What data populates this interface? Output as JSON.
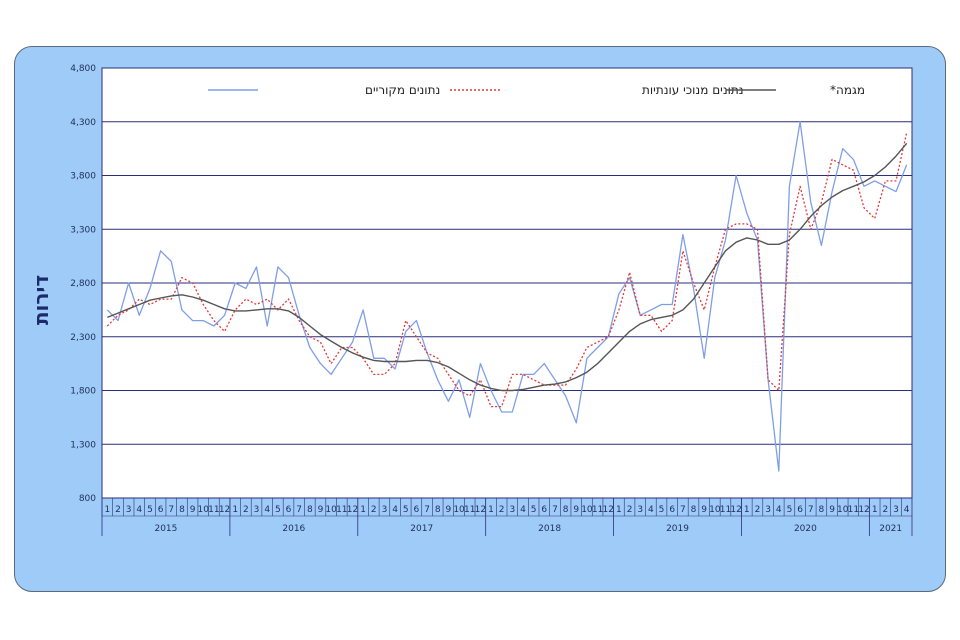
{
  "chart_data": {
    "type": "line",
    "ylabel": "דירות",
    "ylim": [
      800,
      4800
    ],
    "yticks": [
      "800",
      "1,300",
      "1,800",
      "2,300",
      "2,800",
      "3,300",
      "3,800",
      "4,300",
      "4,800"
    ],
    "ytick_values": [
      800,
      1300,
      1800,
      2300,
      2800,
      3300,
      3800,
      4300,
      4800
    ],
    "month_labels": [
      "1",
      "2",
      "3",
      "4",
      "5",
      "6",
      "7",
      "8",
      "9",
      "10",
      "11",
      "12"
    ],
    "years": [
      {
        "label": "2015",
        "months": 12
      },
      {
        "label": "2016",
        "months": 12
      },
      {
        "label": "2017",
        "months": 12
      },
      {
        "label": "2018",
        "months": 12
      },
      {
        "label": "2019",
        "months": 12
      },
      {
        "label": "2020",
        "months": 12
      },
      {
        "label": "2021",
        "months": 4
      }
    ],
    "legend": [
      "נתונים מקוריים",
      "נתונים מנוכי עונתיות",
      "מגמה*"
    ],
    "grid": true,
    "legend_position": "top",
    "series": [
      {
        "name": "נתונים מקוריים",
        "color": "#7f9ee8",
        "style": "solid",
        "values": [
          2550,
          2450,
          2800,
          2500,
          2750,
          3100,
          3000,
          2550,
          2450,
          2450,
          2400,
          2500,
          2800,
          2750,
          2950,
          2400,
          2950,
          2850,
          2500,
          2200,
          2050,
          1950,
          2100,
          2250,
          2550,
          2100,
          2100,
          2000,
          2350,
          2450,
          2150,
          1900,
          1700,
          1900,
          1550,
          2050,
          1800,
          1600,
          1600,
          1950,
          1950,
          2050,
          1900,
          1750,
          1500,
          2100,
          2200,
          2300,
          2700,
          2850,
          2500,
          2550,
          2600,
          2600,
          3250,
          2750,
          2100,
          2850,
          3200,
          3800,
          3450,
          3200,
          1900,
          1050,
          3700,
          4300,
          3550,
          3150,
          3650,
          4050,
          3950,
          3700,
          3750,
          3700,
          3650,
          3900
        ]
      },
      {
        "name": "נתונים מנוכי עונתיות",
        "color": "#e03a3a",
        "style": "dotted",
        "values": [
          2400,
          2500,
          2550,
          2650,
          2600,
          2650,
          2650,
          2850,
          2800,
          2600,
          2450,
          2350,
          2550,
          2650,
          2600,
          2650,
          2550,
          2650,
          2450,
          2300,
          2250,
          2050,
          2200,
          2200,
          2100,
          1950,
          1950,
          2050,
          2450,
          2300,
          2150,
          2100,
          1950,
          1800,
          1750,
          1900,
          1650,
          1650,
          1950,
          1950,
          1900,
          1850,
          1850,
          1850,
          2000,
          2200,
          2250,
          2300,
          2550,
          2900,
          2500,
          2500,
          2350,
          2450,
          3100,
          2800,
          2550,
          2950,
          3300,
          3350,
          3350,
          3300,
          1900,
          1800,
          3250,
          3700,
          3300,
          3550,
          3950,
          3900,
          3850,
          3500,
          3400,
          3750,
          3750,
          4200
        ]
      },
      {
        "name": "מגמה*",
        "color": "#555555",
        "style": "solid",
        "values": [
          2480,
          2520,
          2560,
          2600,
          2640,
          2660,
          2680,
          2690,
          2670,
          2640,
          2600,
          2560,
          2540,
          2540,
          2550,
          2560,
          2560,
          2540,
          2480,
          2400,
          2320,
          2260,
          2200,
          2150,
          2110,
          2080,
          2070,
          2070,
          2070,
          2080,
          2080,
          2060,
          2020,
          1960,
          1900,
          1850,
          1820,
          1800,
          1800,
          1810,
          1830,
          1850,
          1860,
          1880,
          1920,
          1970,
          2050,
          2150,
          2250,
          2350,
          2420,
          2460,
          2480,
          2500,
          2550,
          2650,
          2800,
          2950,
          3100,
          3180,
          3220,
          3200,
          3160,
          3160,
          3200,
          3300,
          3420,
          3520,
          3600,
          3660,
          3700,
          3740,
          3800,
          3880,
          3980,
          4100
        ]
      }
    ]
  }
}
